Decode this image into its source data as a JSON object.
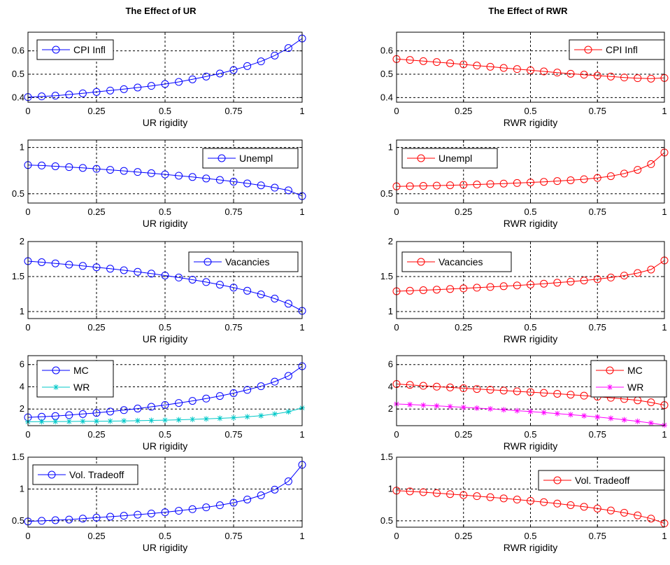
{
  "titles": [
    "The Effect of UR",
    "The Effect of RWR"
  ],
  "colors": {
    "blue": "#0000ff",
    "red": "#ff0000",
    "cyan": "#00c8c8",
    "magenta": "#ff00ff"
  },
  "chart_data": [
    {
      "type": "line",
      "column": 0,
      "title": "The Effect of UR",
      "xlabel": "UR rigidity",
      "ylabel": "",
      "xlim": [
        0,
        1
      ],
      "ylim": [
        0.38,
        0.68
      ],
      "xticks": [
        "0",
        "0.25",
        "0.5",
        "0.75",
        "1"
      ],
      "yticks": [
        "0.4",
        "0.5",
        "0.6"
      ],
      "grid": true,
      "legend_position": "top-left",
      "x": [
        0,
        0.05,
        0.1,
        0.15,
        0.2,
        0.25,
        0.3,
        0.35,
        0.4,
        0.45,
        0.5,
        0.55,
        0.6,
        0.65,
        0.7,
        0.75,
        0.8,
        0.85,
        0.9,
        0.95,
        1
      ],
      "series": [
        {
          "name": "CPI Infl",
          "color": "#0000ff",
          "marker": "circle",
          "values": [
            0.402,
            0.405,
            0.408,
            0.413,
            0.418,
            0.424,
            0.43,
            0.436,
            0.443,
            0.45,
            0.458,
            0.467,
            0.478,
            0.49,
            0.503,
            0.518,
            0.535,
            0.555,
            0.58,
            0.612,
            0.653
          ]
        }
      ]
    },
    {
      "type": "line",
      "column": 1,
      "title": "The Effect of RWR",
      "xlabel": "RWR rigidity",
      "ylabel": "",
      "xlim": [
        0,
        1
      ],
      "ylim": [
        0.38,
        0.68
      ],
      "xticks": [
        "0",
        "0.25",
        "0.5",
        "0.75",
        "1"
      ],
      "yticks": [
        "0.4",
        "0.5",
        "0.6"
      ],
      "grid": true,
      "legend_position": "top-right",
      "x": [
        0,
        0.05,
        0.1,
        0.15,
        0.2,
        0.25,
        0.3,
        0.35,
        0.4,
        0.45,
        0.5,
        0.55,
        0.6,
        0.65,
        0.7,
        0.75,
        0.8,
        0.85,
        0.9,
        0.95,
        1
      ],
      "series": [
        {
          "name": "CPI Infl",
          "color": "#ff0000",
          "marker": "circle",
          "values": [
            0.565,
            0.561,
            0.556,
            0.552,
            0.547,
            0.542,
            0.537,
            0.532,
            0.527,
            0.522,
            0.517,
            0.512,
            0.507,
            0.502,
            0.498,
            0.494,
            0.49,
            0.486,
            0.483,
            0.481,
            0.484
          ]
        }
      ]
    },
    {
      "type": "line",
      "column": 0,
      "xlabel": "UR rigidity",
      "ylabel": "",
      "xlim": [
        0,
        1
      ],
      "ylim": [
        0.4,
        1.08
      ],
      "xticks": [
        "0",
        "0.25",
        "0.5",
        "0.75",
        "1"
      ],
      "yticks": [
        "0.5",
        "1"
      ],
      "grid": true,
      "legend_position": "top-right",
      "x": [
        0,
        0.05,
        0.1,
        0.15,
        0.2,
        0.25,
        0.3,
        0.35,
        0.4,
        0.45,
        0.5,
        0.55,
        0.6,
        0.65,
        0.7,
        0.75,
        0.8,
        0.85,
        0.9,
        0.95,
        1
      ],
      "series": [
        {
          "name": "Unempl",
          "color": "#0000ff",
          "marker": "circle",
          "values": [
            0.81,
            0.805,
            0.797,
            0.788,
            0.779,
            0.769,
            0.758,
            0.747,
            0.735,
            0.722,
            0.709,
            0.695,
            0.681,
            0.665,
            0.649,
            0.631,
            0.612,
            0.591,
            0.566,
            0.537,
            0.475
          ]
        }
      ]
    },
    {
      "type": "line",
      "column": 1,
      "xlabel": "RWR rigidity",
      "ylabel": "",
      "xlim": [
        0,
        1
      ],
      "ylim": [
        0.4,
        1.08
      ],
      "xticks": [
        "0",
        "0.25",
        "0.5",
        "0.75",
        "1"
      ],
      "yticks": [
        "0.5",
        "1"
      ],
      "grid": true,
      "legend_position": "top-left",
      "x": [
        0,
        0.05,
        0.1,
        0.15,
        0.2,
        0.25,
        0.3,
        0.35,
        0.4,
        0.45,
        0.5,
        0.55,
        0.6,
        0.65,
        0.7,
        0.75,
        0.8,
        0.85,
        0.9,
        0.95,
        1
      ],
      "series": [
        {
          "name": "Unempl",
          "color": "#ff0000",
          "marker": "circle",
          "values": [
            0.58,
            0.582,
            0.585,
            0.588,
            0.592,
            0.596,
            0.6,
            0.605,
            0.61,
            0.616,
            0.622,
            0.629,
            0.637,
            0.646,
            0.657,
            0.671,
            0.69,
            0.718,
            0.758,
            0.82,
            0.945
          ]
        }
      ]
    },
    {
      "type": "line",
      "column": 0,
      "xlabel": "UR rigidity",
      "ylabel": "",
      "xlim": [
        0,
        1
      ],
      "ylim": [
        0.9,
        2.0
      ],
      "xticks": [
        "0",
        "0.25",
        "0.5",
        "0.75",
        "1"
      ],
      "yticks": [
        "1",
        "1.5",
        "2"
      ],
      "grid": true,
      "legend_position": "top-right",
      "x": [
        0,
        0.05,
        0.1,
        0.15,
        0.2,
        0.25,
        0.3,
        0.35,
        0.4,
        0.45,
        0.5,
        0.55,
        0.6,
        0.65,
        0.7,
        0.75,
        0.8,
        0.85,
        0.9,
        0.95,
        1
      ],
      "series": [
        {
          "name": "Vacancies",
          "color": "#0000ff",
          "marker": "circle",
          "values": [
            1.72,
            1.705,
            1.688,
            1.67,
            1.652,
            1.633,
            1.612,
            1.59,
            1.567,
            1.542,
            1.515,
            1.486,
            1.455,
            1.421,
            1.384,
            1.343,
            1.297,
            1.245,
            1.185,
            1.112,
            1.01
          ]
        }
      ]
    },
    {
      "type": "line",
      "column": 1,
      "xlabel": "RWR rigidity",
      "ylabel": "",
      "xlim": [
        0,
        1
      ],
      "ylim": [
        0.9,
        2.0
      ],
      "xticks": [
        "0",
        "0.25",
        "0.5",
        "0.75",
        "1"
      ],
      "yticks": [
        "1",
        "1.5",
        "2"
      ],
      "grid": true,
      "legend_position": "top-left",
      "x": [
        0,
        0.05,
        0.1,
        0.15,
        0.2,
        0.25,
        0.3,
        0.35,
        0.4,
        0.45,
        0.5,
        0.55,
        0.6,
        0.65,
        0.7,
        0.75,
        0.8,
        0.85,
        0.9,
        0.95,
        1
      ],
      "series": [
        {
          "name": "Vacancies",
          "color": "#ff0000",
          "marker": "circle",
          "values": [
            1.29,
            1.297,
            1.305,
            1.313,
            1.322,
            1.331,
            1.341,
            1.351,
            1.362,
            1.373,
            1.385,
            1.398,
            1.412,
            1.427,
            1.444,
            1.463,
            1.486,
            1.514,
            1.55,
            1.6,
            1.73
          ]
        }
      ]
    },
    {
      "type": "line",
      "column": 0,
      "xlabel": "UR rigidity",
      "ylabel": "",
      "xlim": [
        0,
        1
      ],
      "ylim": [
        0.5,
        6.8
      ],
      "xticks": [
        "0",
        "0.25",
        "0.5",
        "0.75",
        "1"
      ],
      "yticks": [
        "2",
        "4",
        "6"
      ],
      "grid": true,
      "legend_position": "top-left",
      "x": [
        0,
        0.05,
        0.1,
        0.15,
        0.2,
        0.25,
        0.3,
        0.35,
        0.4,
        0.45,
        0.5,
        0.55,
        0.6,
        0.65,
        0.7,
        0.75,
        0.8,
        0.85,
        0.9,
        0.95,
        1
      ],
      "series": [
        {
          "name": "MC",
          "color": "#0000ff",
          "marker": "circle",
          "values": [
            1.25,
            1.3,
            1.37,
            1.45,
            1.55,
            1.65,
            1.77,
            1.9,
            2.04,
            2.2,
            2.36,
            2.54,
            2.73,
            2.94,
            3.17,
            3.43,
            3.72,
            4.05,
            4.46,
            4.98,
            5.85
          ]
        },
        {
          "name": "WR",
          "color": "#00c8c8",
          "marker": "star",
          "values": [
            0.85,
            0.86,
            0.87,
            0.88,
            0.89,
            0.9,
            0.91,
            0.93,
            0.95,
            0.97,
            1.0,
            1.03,
            1.07,
            1.11,
            1.16,
            1.22,
            1.3,
            1.4,
            1.55,
            1.75,
            2.1
          ]
        }
      ]
    },
    {
      "type": "line",
      "column": 1,
      "xlabel": "RWR rigidity",
      "ylabel": "",
      "xlim": [
        0,
        1
      ],
      "ylim": [
        0.5,
        6.8
      ],
      "xticks": [
        "0",
        "0.25",
        "0.5",
        "0.75",
        "1"
      ],
      "yticks": [
        "2",
        "4",
        "6"
      ],
      "grid": true,
      "legend_position": "top-right",
      "x": [
        0,
        0.05,
        0.1,
        0.15,
        0.2,
        0.25,
        0.3,
        0.35,
        0.4,
        0.45,
        0.5,
        0.55,
        0.6,
        0.65,
        0.7,
        0.75,
        0.8,
        0.85,
        0.9,
        0.95,
        1
      ],
      "series": [
        {
          "name": "MC",
          "color": "#ff0000",
          "marker": "circle",
          "values": [
            4.25,
            4.17,
            4.09,
            4.01,
            3.94,
            3.87,
            3.8,
            3.73,
            3.66,
            3.59,
            3.52,
            3.45,
            3.37,
            3.29,
            3.2,
            3.11,
            3.01,
            2.9,
            2.78,
            2.6,
            2.35
          ]
        },
        {
          "name": "WR",
          "color": "#ff00ff",
          "marker": "star",
          "values": [
            2.45,
            2.4,
            2.34,
            2.28,
            2.22,
            2.15,
            2.08,
            2.01,
            1.93,
            1.85,
            1.77,
            1.68,
            1.59,
            1.49,
            1.39,
            1.28,
            1.16,
            1.03,
            0.89,
            0.74,
            0.55
          ]
        }
      ]
    },
    {
      "type": "line",
      "column": 0,
      "xlabel": "UR rigidity",
      "ylabel": "",
      "xlim": [
        0,
        1
      ],
      "ylim": [
        0.4,
        1.5
      ],
      "xticks": [
        "0",
        "0.25",
        "0.5",
        "0.75",
        "1"
      ],
      "yticks": [
        "0.5",
        "1",
        "1.5"
      ],
      "grid": true,
      "legend_position": "top-left",
      "x": [
        0,
        0.05,
        0.1,
        0.15,
        0.2,
        0.25,
        0.3,
        0.35,
        0.4,
        0.45,
        0.5,
        0.55,
        0.6,
        0.65,
        0.7,
        0.75,
        0.8,
        0.85,
        0.9,
        0.95,
        1
      ],
      "series": [
        {
          "name": "Vol. Tradeoff",
          "color": "#0000ff",
          "marker": "circle",
          "values": [
            0.49,
            0.5,
            0.51,
            0.52,
            0.535,
            0.55,
            0.565,
            0.58,
            0.597,
            0.615,
            0.635,
            0.658,
            0.683,
            0.712,
            0.745,
            0.785,
            0.835,
            0.9,
            0.99,
            1.12,
            1.38
          ]
        }
      ]
    },
    {
      "type": "line",
      "column": 1,
      "xlabel": "RWR rigidity",
      "ylabel": "",
      "xlim": [
        0,
        1
      ],
      "ylim": [
        0.4,
        1.5
      ],
      "xticks": [
        "0",
        "0.25",
        "0.5",
        "0.75",
        "1"
      ],
      "yticks": [
        "0.5",
        "1",
        "1.5"
      ],
      "grid": true,
      "legend_position": "top-right",
      "x": [
        0,
        0.05,
        0.1,
        0.15,
        0.2,
        0.25,
        0.3,
        0.35,
        0.4,
        0.45,
        0.5,
        0.55,
        0.6,
        0.65,
        0.7,
        0.75,
        0.8,
        0.85,
        0.9,
        0.95,
        1
      ],
      "series": [
        {
          "name": "Vol. Tradeoff",
          "color": "#ff0000",
          "marker": "circle",
          "values": [
            0.975,
            0.963,
            0.95,
            0.935,
            0.92,
            0.905,
            0.888,
            0.871,
            0.853,
            0.834,
            0.814,
            0.793,
            0.771,
            0.747,
            0.721,
            0.693,
            0.662,
            0.627,
            0.585,
            0.535,
            0.46
          ]
        }
      ]
    }
  ]
}
